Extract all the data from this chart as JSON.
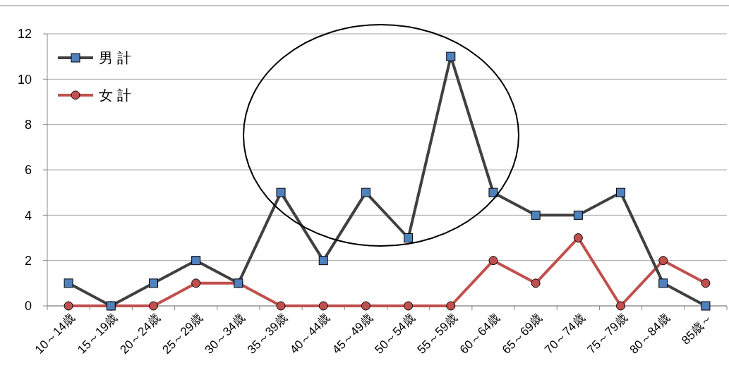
{
  "chart_data": {
    "type": "line",
    "categories": [
      "10～14歳",
      "15～19歳",
      "20～24歳",
      "25～29歳",
      "30～34歳",
      "35～39歳",
      "40～44歳",
      "45～49歳",
      "50～54歳",
      "55～59歳",
      "60～64歳",
      "65～69歳",
      "70～74歳",
      "75～79歳",
      "80～84歳",
      "85歳～"
    ],
    "series": [
      {
        "name": "男 計",
        "color": "#404040",
        "marker": "square",
        "values": [
          1,
          0,
          1,
          2,
          1,
          5,
          2,
          5,
          3,
          11,
          5,
          4,
          4,
          5,
          1,
          0
        ]
      },
      {
        "name": "女 計",
        "color": "#c0504d",
        "marker": "circle",
        "values": [
          0,
          0,
          0,
          1,
          1,
          0,
          0,
          0,
          0,
          0,
          2,
          1,
          3,
          0,
          2,
          1
        ]
      }
    ],
    "ylim": [
      0,
      12
    ],
    "yticks": [
      0,
      2,
      4,
      6,
      8,
      10,
      12
    ],
    "grid": "y",
    "legend": "top left"
  }
}
